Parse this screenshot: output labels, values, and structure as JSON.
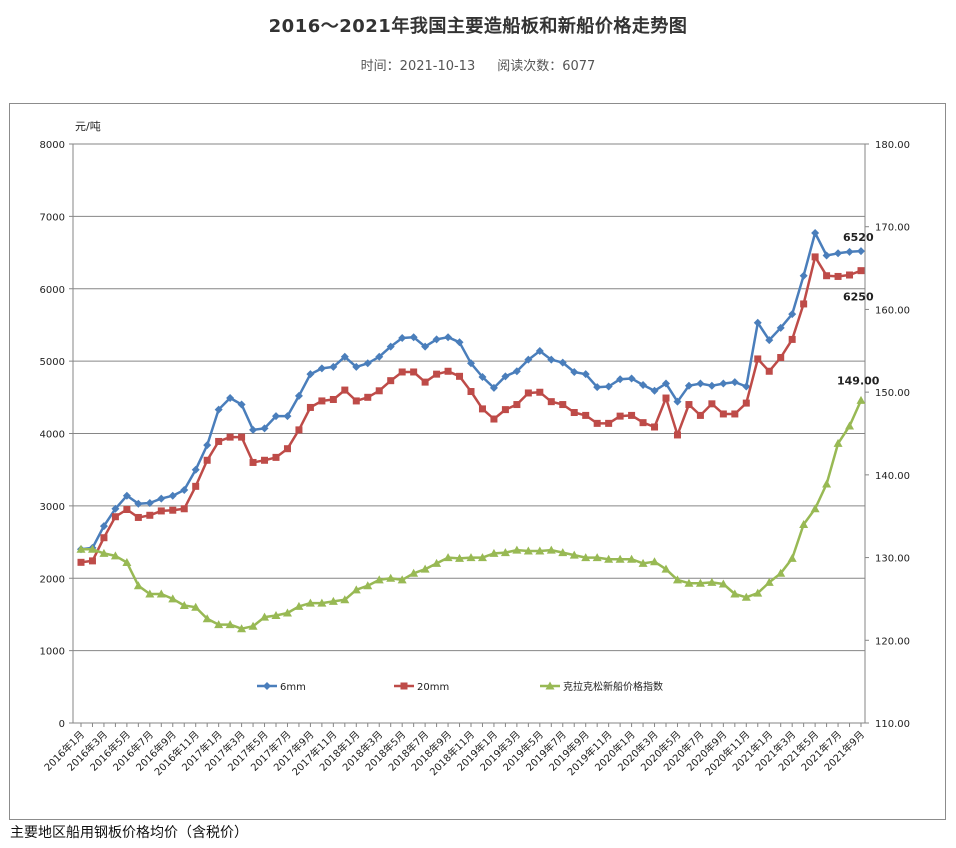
{
  "header": {
    "title": "2016～2021年我国主要造船板和新船价格走势图",
    "time_label": "时间：2021-10-13",
    "reads_label": "阅读次数：6077"
  },
  "caption": "主要地区船用钢板价格均价（含税价）",
  "colors": {
    "series_6mm": "#4a7ebb",
    "series_20mm": "#be4b48",
    "series_index": "#98b954",
    "grid": "#868686"
  },
  "chart_data": {
    "type": "line",
    "y_left_unit": "元/吨",
    "y_left_ticks": [
      "8000",
      "7000",
      "6000",
      "5000",
      "4000",
      "3000",
      "2000",
      "1000",
      "0"
    ],
    "y_right_ticks": [
      "180.00",
      "170.00",
      "160.00",
      "150.00",
      "140.00",
      "130.00",
      "120.00",
      "110.00"
    ],
    "y_left_range": [
      0,
      8000
    ],
    "y_right_range": [
      110,
      180
    ],
    "x_tick_labels": [
      "2016年1月",
      "2016年3月",
      "2016年5月",
      "2016年7月",
      "2016年9月",
      "2016年11月",
      "2017年1月",
      "2017年3月",
      "2017年5月",
      "2017年7月",
      "2017年9月",
      "2017年11月",
      "2018年1月",
      "2018年3月",
      "2018年5月",
      "2018年7月",
      "2018年9月",
      "2018年11月",
      "2019年1月",
      "2019年3月",
      "2019年5月",
      "2019年7月",
      "2019年9月",
      "2019年11月",
      "2020年1月",
      "2020年3月",
      "2020年5月",
      "2020年7月",
      "2020年9月",
      "2020年11月",
      "2021年1月",
      "2021年3月",
      "2021年5月",
      "2021年7月",
      "2021年9月"
    ],
    "legend_placement": "bottom-inside",
    "grid": "horizontal",
    "series": [
      {
        "name": "6mm",
        "axis": "left",
        "marker": "diamond",
        "values": [
          2400,
          2420,
          2720,
          2960,
          3140,
          3030,
          3040,
          3100,
          3140,
          3220,
          3500,
          3840,
          4330,
          4490,
          4400,
          4050,
          4070,
          4240,
          4240,
          4520,
          4820,
          4900,
          4920,
          5060,
          4920,
          4970,
          5060,
          5200,
          5320,
          5330,
          5200,
          5300,
          5330,
          5260,
          4970,
          4780,
          4630,
          4790,
          4860,
          5020,
          5140,
          5020,
          4980,
          4850,
          4820,
          4640,
          4650,
          4750,
          4760,
          4670,
          4590,
          4690,
          4440,
          4660,
          4690,
          4660,
          4690,
          4710,
          4650,
          5530,
          5290,
          5460,
          5650,
          6180,
          6770,
          6460,
          6490,
          6510,
          6520
        ],
        "end_label": "6520"
      },
      {
        "name": "20mm",
        "axis": "left",
        "marker": "square",
        "values": [
          2220,
          2240,
          2560,
          2850,
          2950,
          2840,
          2870,
          2930,
          2940,
          2960,
          3270,
          3630,
          3890,
          3950,
          3950,
          3600,
          3630,
          3670,
          3790,
          4050,
          4360,
          4450,
          4470,
          4600,
          4450,
          4500,
          4590,
          4730,
          4850,
          4850,
          4710,
          4820,
          4860,
          4790,
          4580,
          4340,
          4200,
          4330,
          4400,
          4560,
          4570,
          4440,
          4400,
          4290,
          4250,
          4140,
          4140,
          4240,
          4250,
          4150,
          4090,
          4490,
          3980,
          4400,
          4250,
          4410,
          4270,
          4270,
          4420,
          5030,
          4860,
          5050,
          5300,
          5790,
          6440,
          6180,
          6170,
          6190,
          6250
        ],
        "end_label": "6250"
      },
      {
        "name": "克拉克松新船价格指数",
        "axis": "right",
        "marker": "triangle",
        "values": [
          131.0,
          131.0,
          130.5,
          130.2,
          129.4,
          126.6,
          125.6,
          125.6,
          125.0,
          124.2,
          124.0,
          122.6,
          121.9,
          121.9,
          121.4,
          121.7,
          122.8,
          123.0,
          123.3,
          124.1,
          124.5,
          124.5,
          124.7,
          124.9,
          126.1,
          126.6,
          127.3,
          127.5,
          127.3,
          128.1,
          128.6,
          129.3,
          130.0,
          129.9,
          130.0,
          130.0,
          130.5,
          130.6,
          130.9,
          130.8,
          130.8,
          130.9,
          130.6,
          130.3,
          130.0,
          130.0,
          129.8,
          129.8,
          129.8,
          129.3,
          129.5,
          128.6,
          127.3,
          126.9,
          126.9,
          127.0,
          126.8,
          125.6,
          125.2,
          125.7,
          127.0,
          128.1,
          129.9,
          134.0,
          135.9,
          138.9,
          143.8,
          145.9,
          149.0
        ],
        "end_label": "149.00"
      }
    ]
  }
}
